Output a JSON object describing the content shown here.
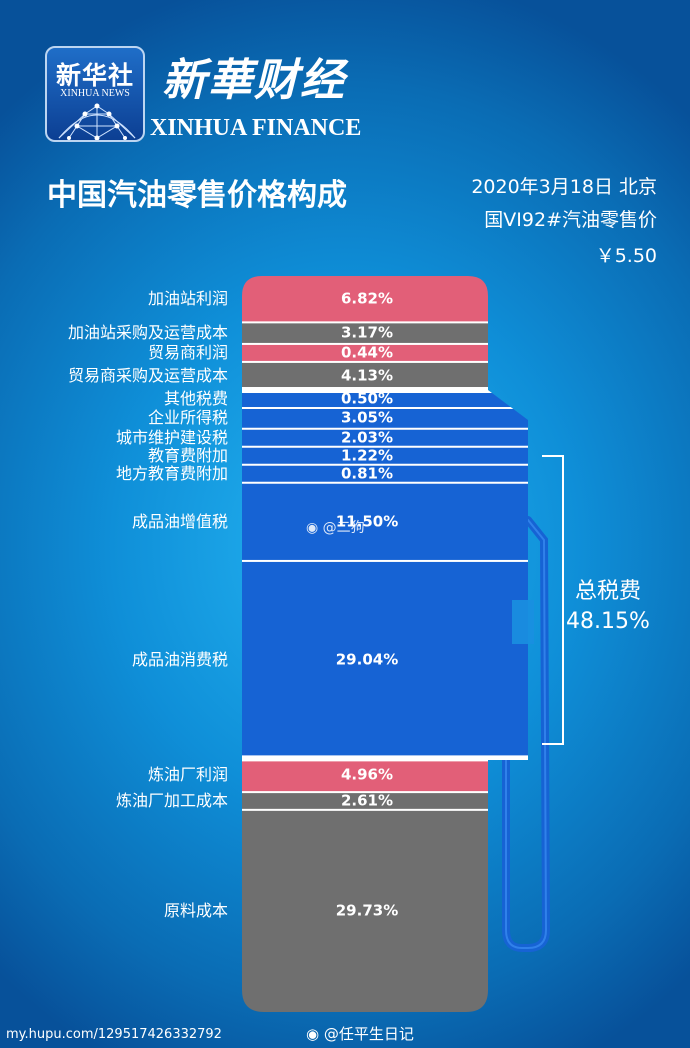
{
  "header": {
    "logo_big": "新华社",
    "logo_small": "XINHUA NEWS",
    "brand_cn": "新華财经",
    "brand_en": "XINHUA FINANCE"
  },
  "title": "中国汽油零售价格构成",
  "info": {
    "date": "2020年3月18日 北京",
    "grade": "国VI92#汽油零售价",
    "price": "￥5.50"
  },
  "colors": {
    "profit": "#e25f78",
    "cost": "#6f6f6f",
    "tax": "#1663d4",
    "background": "#0f8fd8"
  },
  "chart_data": {
    "type": "bar",
    "layout": "stacked-single-column",
    "title": "中国汽油零售价格构成",
    "unit": "%",
    "categories": [
      "加油站利润",
      "加油站采购及运营成本",
      "贸易商利润",
      "贸易商采购及运营成本",
      "其他税费",
      "企业所得税",
      "城市维护建设税",
      "教育费附加",
      "地方教育费附加",
      "成品油增值税",
      "成品油消费税",
      "炼油厂利润",
      "炼油厂加工成本",
      "原料成本"
    ],
    "values": [
      6.82,
      3.17,
      0.44,
      4.13,
      0.5,
      3.05,
      2.03,
      1.22,
      0.81,
      11.5,
      29.04,
      4.96,
      2.61,
      29.73
    ],
    "value_labels": [
      "6.82%",
      "3.17%",
      "0.44%",
      "4.13%",
      "0.50%",
      "3.05%",
      "2.03%",
      "1.22%",
      "0.81%",
      "11.50%",
      "29.04%",
      "4.96%",
      "2.61%",
      "29.73%"
    ],
    "groups": [
      "profit",
      "cost",
      "profit",
      "cost",
      "tax",
      "tax",
      "tax",
      "tax",
      "tax",
      "tax",
      "tax",
      "profit",
      "cost",
      "cost"
    ],
    "total_tax": {
      "label": "总税费",
      "value": 48.15,
      "value_label": "48.15%"
    }
  },
  "footer": {
    "source_left": "my.hupu.com/129517426332792",
    "source_right": "@任平生日记",
    "watermark": "@二狗"
  }
}
